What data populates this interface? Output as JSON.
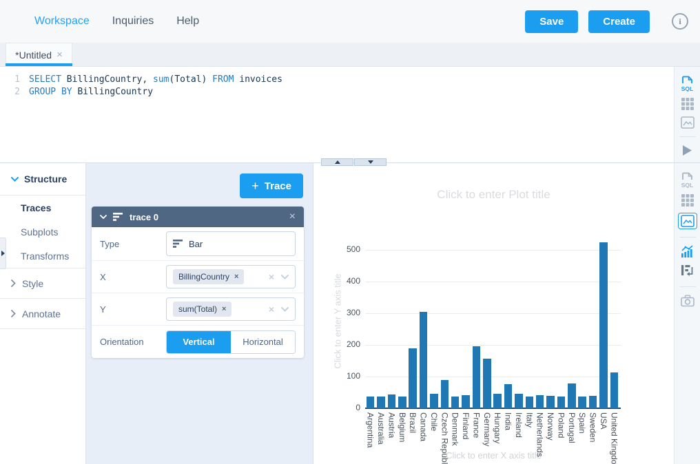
{
  "colors": {
    "accent": "#1b9df0",
    "bar": "#1f77b4",
    "trace_header": "#506784",
    "active_link": "#2b9ff2"
  },
  "navbar": {
    "items": [
      {
        "label": "Workspace",
        "active": true
      },
      {
        "label": "Inquiries",
        "active": false
      },
      {
        "label": "Help",
        "active": false
      }
    ],
    "save_label": "Save",
    "create_label": "Create",
    "info_glyph": "i"
  },
  "tabbar": {
    "tabs": [
      {
        "label": "*Untitled",
        "close": "×"
      }
    ]
  },
  "editor": {
    "lines": [
      {
        "num": "1",
        "tokens": [
          {
            "t": "SELECT"
          },
          {
            "t": " BillingCountry, "
          },
          {
            "t": "sum"
          },
          {
            "t": "(Total) "
          },
          {
            "t": "FROM"
          },
          {
            "t": " invoices"
          }
        ]
      },
      {
        "num": "2",
        "tokens": [
          {
            "t": "GROUP BY"
          },
          {
            "t": " BillingCountry"
          }
        ]
      }
    ]
  },
  "icons": {
    "sql_label": "SQL"
  },
  "structure_nav": {
    "header": "Structure",
    "items": [
      {
        "label": "Traces",
        "active": true
      },
      {
        "label": "Subplots",
        "active": false
      },
      {
        "label": "Transforms",
        "active": false
      }
    ],
    "sections": [
      {
        "label": "Style"
      },
      {
        "label": "Annotate"
      }
    ]
  },
  "trace_panel": {
    "add_trace": {
      "plus": "+",
      "label": "Trace"
    },
    "header": {
      "title": "trace 0",
      "close": "×"
    },
    "fields": {
      "type": {
        "label": "Type",
        "value": "Bar"
      },
      "x": {
        "label": "X",
        "chip": "BillingCountry",
        "chip_remove": "×",
        "clear": "×"
      },
      "y": {
        "label": "Y",
        "chip": "sum(Total)",
        "chip_remove": "×",
        "clear": "×"
      },
      "orientation": {
        "label": "Orientation",
        "options": [
          {
            "label": "Vertical",
            "active": true
          },
          {
            "label": "Horizontal",
            "active": false
          }
        ]
      }
    }
  },
  "chart_data": {
    "type": "bar",
    "title": "Click to enter Plot title",
    "xlabel": "Click to enter X axis title",
    "ylabel": "Click to enter Y axis title",
    "categories": [
      "Argentina",
      "Australia",
      "Austria",
      "Belgium",
      "Brazil",
      "Canada",
      "Chile",
      "Czech Republic",
      "Denmark",
      "Finland",
      "France",
      "Germany",
      "Hungary",
      "India",
      "Ireland",
      "Italy",
      "Netherlands",
      "Norway",
      "Poland",
      "Portugal",
      "Spain",
      "Sweden",
      "USA",
      "United Kingdom"
    ],
    "values": [
      37.6,
      37.6,
      42.6,
      37.6,
      190.1,
      304.0,
      46.6,
      90.2,
      37.6,
      41.6,
      195.1,
      156.5,
      45.6,
      75.3,
      45.6,
      37.6,
      40.6,
      39.6,
      37.6,
      77.2,
      37.6,
      38.6,
      523.1,
      112.9
    ],
    "yticks": [
      0,
      100,
      200,
      300,
      400,
      500
    ],
    "ylim": [
      0,
      550
    ],
    "grid": true,
    "legend_position": "none",
    "bar_color": "#1f77b4"
  }
}
